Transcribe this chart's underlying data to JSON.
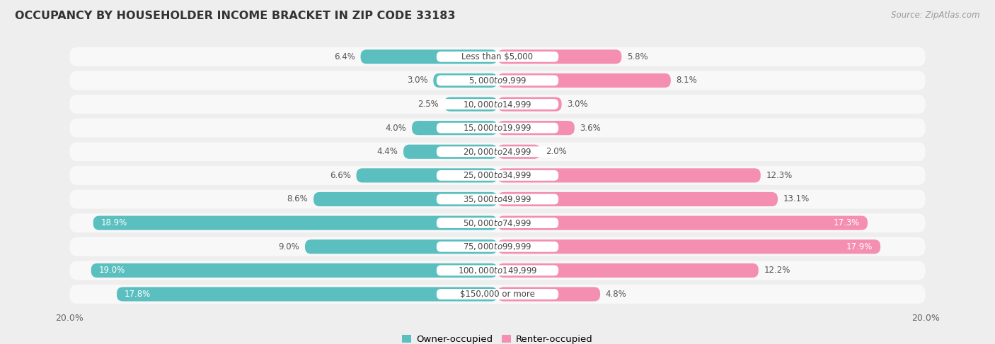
{
  "title": "OCCUPANCY BY HOUSEHOLDER INCOME BRACKET IN ZIP CODE 33183",
  "source": "Source: ZipAtlas.com",
  "categories": [
    "Less than $5,000",
    "$5,000 to $9,999",
    "$10,000 to $14,999",
    "$15,000 to $19,999",
    "$20,000 to $24,999",
    "$25,000 to $34,999",
    "$35,000 to $49,999",
    "$50,000 to $74,999",
    "$75,000 to $99,999",
    "$100,000 to $149,999",
    "$150,000 or more"
  ],
  "owner_values": [
    6.4,
    3.0,
    2.5,
    4.0,
    4.4,
    6.6,
    8.6,
    18.9,
    9.0,
    19.0,
    17.8
  ],
  "renter_values": [
    5.8,
    8.1,
    3.0,
    3.6,
    2.0,
    12.3,
    13.1,
    17.3,
    17.9,
    12.2,
    4.8
  ],
  "owner_color": "#5bbfbf",
  "renter_color": "#f48fb1",
  "background_color": "#eeeeee",
  "bar_background": "#f8f8f8",
  "label_bg": "#ffffff",
  "max_value": 20.0,
  "title_fontsize": 11.5,
  "label_fontsize": 8.5,
  "value_fontsize": 8.5,
  "tick_fontsize": 9,
  "legend_fontsize": 9.5,
  "source_fontsize": 8.5
}
